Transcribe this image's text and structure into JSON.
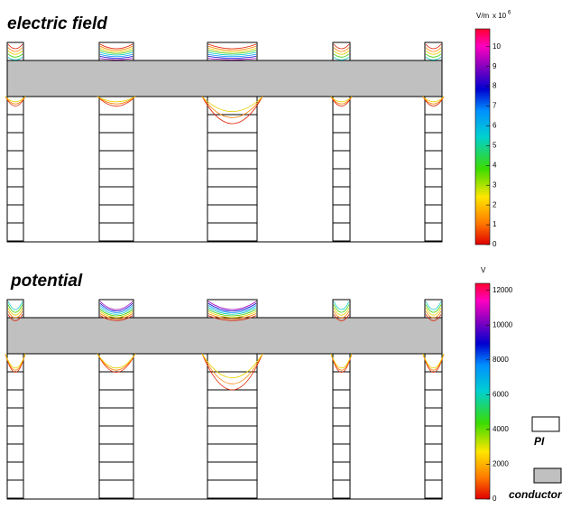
{
  "panels": [
    {
      "title": "electric field",
      "colorbar": {
        "unit": "V/m",
        "multiplier": "x 10",
        "exponent": "6",
        "range": [
          0,
          10.9
        ],
        "ticks": [
          0,
          1,
          2,
          3,
          4,
          5,
          6,
          7,
          8,
          9,
          10
        ]
      }
    },
    {
      "title": "potential",
      "colorbar": {
        "unit": "V",
        "range": [
          0,
          12400
        ],
        "ticks": [
          0,
          2000,
          4000,
          6000,
          8000,
          10000,
          12000
        ]
      }
    }
  ],
  "legend": [
    {
      "label": "PI"
    },
    {
      "label": "conductor"
    }
  ]
}
